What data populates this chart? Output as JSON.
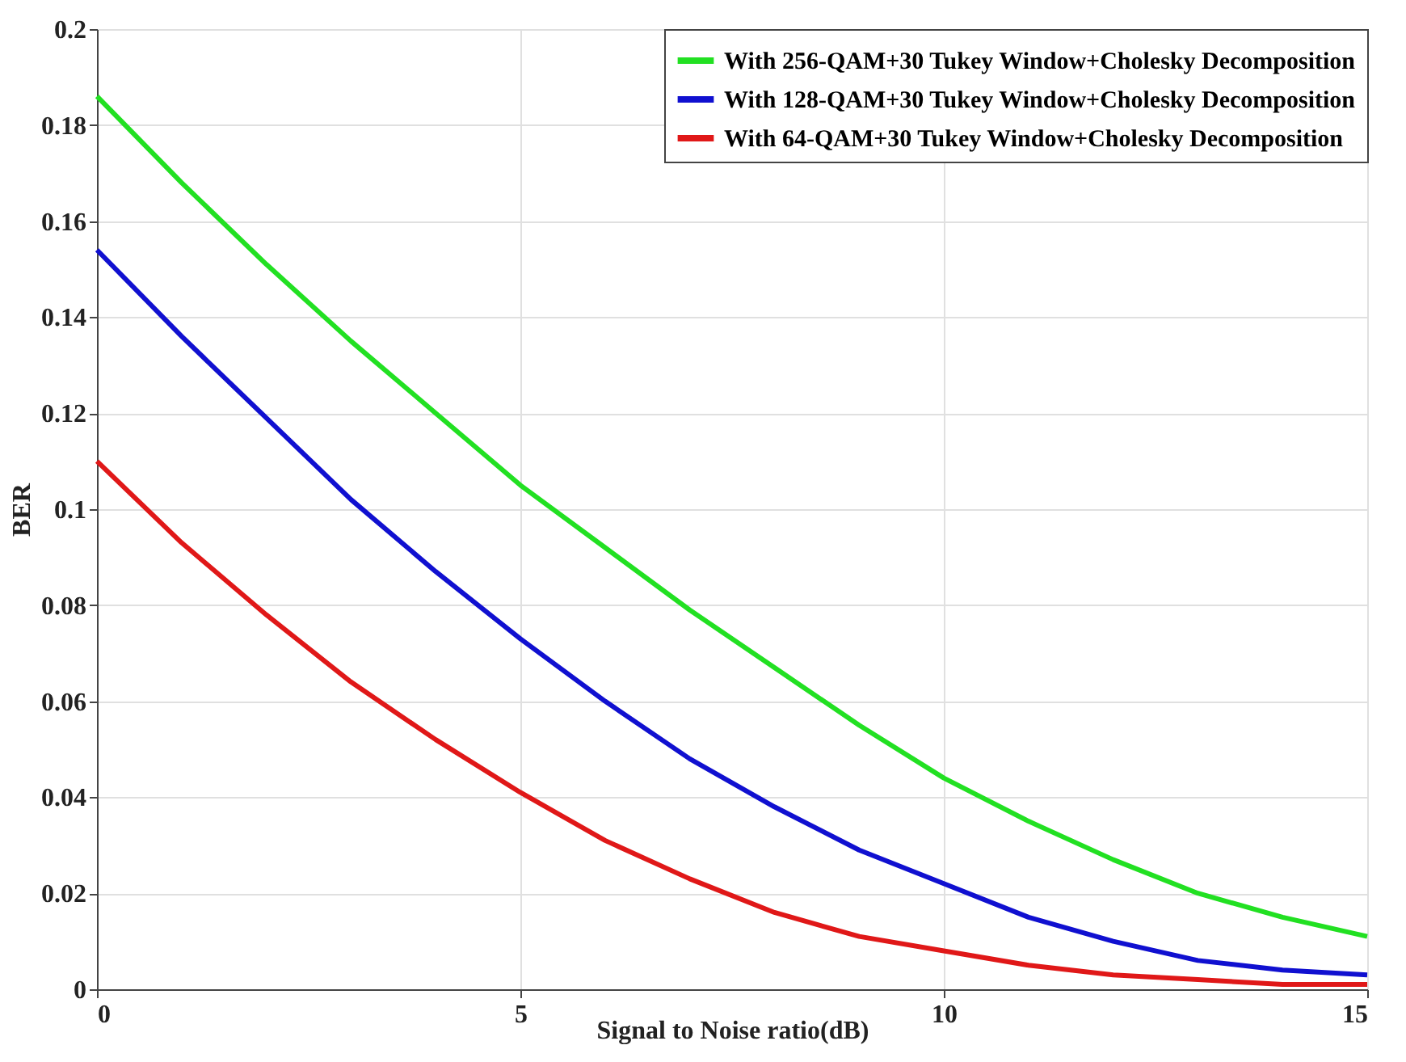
{
  "chart_data": {
    "type": "line",
    "xlabel": "Signal to Noise ratio(dB)",
    "ylabel": "BER",
    "x": [
      0,
      1,
      2,
      3,
      4,
      5,
      6,
      7,
      8,
      9,
      10,
      11,
      12,
      13,
      14,
      15
    ],
    "series": [
      {
        "name": "With 256-QAM+30 Tukey Window+Cholesky Decomposition",
        "color": "#22e022",
        "values": [
          0.186,
          0.168,
          0.151,
          0.135,
          0.12,
          0.105,
          0.092,
          0.079,
          0.067,
          0.055,
          0.044,
          0.035,
          0.027,
          0.02,
          0.015,
          0.011
        ]
      },
      {
        "name": "With 128-QAM+30 Tukey Window+Cholesky Decomposition",
        "color": "#1010d0",
        "values": [
          0.154,
          0.136,
          0.119,
          0.102,
          0.087,
          0.073,
          0.06,
          0.048,
          0.038,
          0.029,
          0.022,
          0.015,
          0.01,
          0.006,
          0.004,
          0.003
        ]
      },
      {
        "name": "With 64-QAM+30 Tukey Window+Cholesky Decomposition",
        "color": "#e01818",
        "values": [
          0.11,
          0.093,
          0.078,
          0.064,
          0.052,
          0.041,
          0.031,
          0.023,
          0.016,
          0.011,
          0.008,
          0.005,
          0.003,
          0.002,
          0.001,
          0.001
        ]
      }
    ],
    "xlim": [
      0,
      15
    ],
    "xticks": [
      0,
      5,
      10,
      15
    ],
    "ylim": [
      0,
      0.2
    ],
    "yticks": [
      0,
      0.02,
      0.04,
      0.06,
      0.08,
      0.1,
      0.12,
      0.14,
      0.16,
      0.18,
      0.2
    ],
    "grid": true,
    "legend": "top right",
    "marker": "none",
    "line_style": "solid"
  }
}
